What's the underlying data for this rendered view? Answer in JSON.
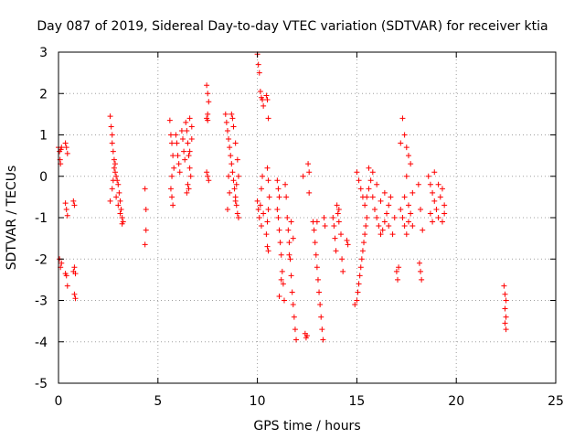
{
  "chart_data": {
    "type": "scatter",
    "title": "Day 087 of 2019, Sidereal Day-to-day VTEC variation (SDTVAR) for receiver ktia",
    "xlabel": "GPS time / hours",
    "ylabel": "SDTVAR / TECUs",
    "xlim": [
      0,
      25
    ],
    "ylim": [
      -5,
      3
    ],
    "xticks": [
      0,
      5,
      10,
      15,
      20,
      25
    ],
    "yticks": [
      -5,
      -4,
      -3,
      -2,
      -1,
      0,
      1,
      2,
      3
    ],
    "grid": true,
    "marker": "+",
    "colors": {
      "points": "#ff0000",
      "grid": "#a0a0a0",
      "axes": "#000000"
    },
    "series": [
      {
        "name": "SDTVAR",
        "points": [
          [
            0.0,
            0.7
          ],
          [
            0.05,
            0.6
          ],
          [
            0.08,
            0.4
          ],
          [
            0.1,
            0.3
          ],
          [
            0.12,
            0.65
          ],
          [
            0.15,
            0.7
          ],
          [
            0.05,
            -2.0
          ],
          [
            0.1,
            -2.2
          ],
          [
            0.15,
            -2.1
          ],
          [
            0.35,
            0.8
          ],
          [
            0.4,
            0.7
          ],
          [
            0.45,
            0.55
          ],
          [
            0.35,
            -0.65
          ],
          [
            0.4,
            -0.8
          ],
          [
            0.45,
            -0.95
          ],
          [
            0.35,
            -2.35
          ],
          [
            0.4,
            -2.4
          ],
          [
            0.45,
            -2.65
          ],
          [
            0.75,
            -0.6
          ],
          [
            0.8,
            -0.7
          ],
          [
            0.75,
            -2.3
          ],
          [
            0.8,
            -2.2
          ],
          [
            0.85,
            -2.35
          ],
          [
            0.8,
            -2.85
          ],
          [
            0.85,
            -2.95
          ],
          [
            2.6,
            1.45
          ],
          [
            2.65,
            1.2
          ],
          [
            2.7,
            1.0
          ],
          [
            2.7,
            0.8
          ],
          [
            2.75,
            0.6
          ],
          [
            2.8,
            0.4
          ],
          [
            2.8,
            0.2
          ],
          [
            2.85,
            0.1
          ],
          [
            2.9,
            0.0
          ],
          [
            2.95,
            -0.1
          ],
          [
            3.0,
            -0.2
          ],
          [
            3.05,
            -0.4
          ],
          [
            3.1,
            -0.6
          ],
          [
            3.15,
            -0.8
          ],
          [
            3.2,
            -1.0
          ],
          [
            3.25,
            -1.1
          ],
          [
            2.6,
            -0.6
          ],
          [
            2.7,
            -0.3
          ],
          [
            2.75,
            -0.1
          ],
          [
            2.85,
            0.3
          ],
          [
            2.9,
            -0.5
          ],
          [
            3.0,
            -0.7
          ],
          [
            3.1,
            -0.9
          ],
          [
            3.2,
            -1.15
          ],
          [
            4.35,
            -0.3
          ],
          [
            4.4,
            -0.8
          ],
          [
            4.4,
            -1.3
          ],
          [
            4.35,
            -1.65
          ],
          [
            5.6,
            1.35
          ],
          [
            5.65,
            1.0
          ],
          [
            5.7,
            0.8
          ],
          [
            5.75,
            0.5
          ],
          [
            5.8,
            0.2
          ],
          [
            5.7,
            0.0
          ],
          [
            5.65,
            -0.3
          ],
          [
            5.7,
            -0.5
          ],
          [
            5.75,
            -0.7
          ],
          [
            5.9,
            1.0
          ],
          [
            5.95,
            0.8
          ],
          [
            6.0,
            0.5
          ],
          [
            6.05,
            0.3
          ],
          [
            6.1,
            0.1
          ],
          [
            6.2,
            1.1
          ],
          [
            6.25,
            0.9
          ],
          [
            6.3,
            0.6
          ],
          [
            6.35,
            0.4
          ],
          [
            6.4,
            1.3
          ],
          [
            6.45,
            1.1
          ],
          [
            6.5,
            0.8
          ],
          [
            6.55,
            0.5
          ],
          [
            6.6,
            0.2
          ],
          [
            6.65,
            0.0
          ],
          [
            6.5,
            -0.2
          ],
          [
            6.45,
            -0.4
          ],
          [
            6.55,
            -0.3
          ],
          [
            6.6,
            1.4
          ],
          [
            6.7,
            1.2
          ],
          [
            6.7,
            0.9
          ],
          [
            6.6,
            0.6
          ],
          [
            7.45,
            2.2
          ],
          [
            7.5,
            2.0
          ],
          [
            7.55,
            1.8
          ],
          [
            7.5,
            1.5
          ],
          [
            7.45,
            1.4
          ],
          [
            7.5,
            1.35
          ],
          [
            7.45,
            0.1
          ],
          [
            7.5,
            0.0
          ],
          [
            7.55,
            -0.1
          ],
          [
            8.4,
            1.5
          ],
          [
            8.45,
            1.3
          ],
          [
            8.5,
            1.1
          ],
          [
            8.55,
            0.9
          ],
          [
            8.6,
            0.7
          ],
          [
            8.65,
            0.5
          ],
          [
            8.7,
            0.3
          ],
          [
            8.75,
            0.1
          ],
          [
            8.8,
            -0.1
          ],
          [
            8.85,
            -0.3
          ],
          [
            8.9,
            -0.5
          ],
          [
            8.95,
            -0.7
          ],
          [
            9.0,
            -0.9
          ],
          [
            8.5,
            -0.8
          ],
          [
            8.55,
            0.0
          ],
          [
            8.6,
            -0.4
          ],
          [
            8.7,
            1.5
          ],
          [
            8.8,
            1.2
          ],
          [
            8.9,
            0.8
          ],
          [
            9.0,
            0.4
          ],
          [
            9.05,
            0.0
          ],
          [
            8.95,
            -0.2
          ],
          [
            9.05,
            -1.0
          ],
          [
            8.9,
            -0.6
          ],
          [
            8.75,
            1.4
          ],
          [
            10.0,
            2.95
          ],
          [
            10.05,
            2.7
          ],
          [
            10.1,
            2.5
          ],
          [
            10.15,
            2.05
          ],
          [
            10.2,
            1.9
          ],
          [
            10.25,
            1.85
          ],
          [
            10.3,
            1.7
          ],
          [
            10.45,
            1.95
          ],
          [
            10.5,
            1.85
          ],
          [
            10.55,
            1.4
          ],
          [
            10.0,
            -0.6
          ],
          [
            10.05,
            -0.8
          ],
          [
            10.1,
            -1.0
          ],
          [
            10.15,
            -0.7
          ],
          [
            10.2,
            -0.3
          ],
          [
            10.25,
            0.0
          ],
          [
            10.3,
            -0.9
          ],
          [
            10.2,
            -1.2
          ],
          [
            10.5,
            0.2
          ],
          [
            10.55,
            -0.1
          ],
          [
            10.6,
            -0.5
          ],
          [
            10.55,
            -0.8
          ],
          [
            10.5,
            -1.1
          ],
          [
            10.45,
            -1.4
          ],
          [
            10.5,
            -1.7
          ],
          [
            10.55,
            -1.8
          ],
          [
            11.0,
            -0.1
          ],
          [
            11.05,
            -0.3
          ],
          [
            11.1,
            -0.5
          ],
          [
            11.0,
            -0.8
          ],
          [
            11.05,
            -1.0
          ],
          [
            11.1,
            -1.3
          ],
          [
            11.15,
            -1.6
          ],
          [
            11.2,
            -1.9
          ],
          [
            11.25,
            -2.3
          ],
          [
            11.3,
            -2.6
          ],
          [
            11.35,
            -3.0
          ],
          [
            11.1,
            -2.9
          ],
          [
            11.2,
            -2.5
          ],
          [
            11.4,
            -0.2
          ],
          [
            11.45,
            -0.5
          ],
          [
            11.5,
            -1.0
          ],
          [
            11.55,
            -1.3
          ],
          [
            11.6,
            -1.6
          ],
          [
            11.65,
            -2.0
          ],
          [
            11.7,
            -2.4
          ],
          [
            11.75,
            -2.8
          ],
          [
            11.8,
            -3.1
          ],
          [
            11.85,
            -3.4
          ],
          [
            11.9,
            -3.7
          ],
          [
            11.95,
            -3.95
          ],
          [
            11.6,
            -1.9
          ],
          [
            11.7,
            -1.1
          ],
          [
            11.8,
            -1.5
          ],
          [
            12.3,
            -0.0
          ],
          [
            12.4,
            -3.8
          ],
          [
            12.45,
            -3.9
          ],
          [
            12.5,
            -3.85
          ],
          [
            12.55,
            0.3
          ],
          [
            12.6,
            0.1
          ],
          [
            12.6,
            -0.4
          ],
          [
            12.8,
            -1.1
          ],
          [
            12.85,
            -1.3
          ],
          [
            12.9,
            -1.6
          ],
          [
            12.95,
            -1.9
          ],
          [
            13.0,
            -2.2
          ],
          [
            13.05,
            -2.5
          ],
          [
            13.1,
            -2.8
          ],
          [
            13.15,
            -3.1
          ],
          [
            13.2,
            -3.4
          ],
          [
            13.25,
            -3.7
          ],
          [
            13.3,
            -3.95
          ],
          [
            13.35,
            -1.0
          ],
          [
            13.4,
            -1.2
          ],
          [
            13.0,
            -1.1
          ],
          [
            13.8,
            -1.0
          ],
          [
            13.85,
            -1.2
          ],
          [
            13.9,
            -1.5
          ],
          [
            13.95,
            -1.8
          ],
          [
            14.0,
            -0.7
          ],
          [
            14.05,
            -0.9
          ],
          [
            14.1,
            -1.1
          ],
          [
            14.2,
            -1.4
          ],
          [
            14.25,
            -2.0
          ],
          [
            14.3,
            -2.3
          ],
          [
            14.1,
            -0.8
          ],
          [
            14.5,
            -1.55
          ],
          [
            14.55,
            -1.65
          ],
          [
            14.9,
            -3.1
          ],
          [
            15.0,
            -3.0
          ],
          [
            15.05,
            -2.8
          ],
          [
            15.1,
            -2.6
          ],
          [
            15.15,
            -2.4
          ],
          [
            15.2,
            -2.2
          ],
          [
            15.25,
            -2.0
          ],
          [
            15.3,
            -1.8
          ],
          [
            15.35,
            -1.6
          ],
          [
            15.4,
            -1.4
          ],
          [
            15.45,
            -1.2
          ],
          [
            15.5,
            -1.0
          ],
          [
            15.0,
            0.1
          ],
          [
            15.1,
            -0.1
          ],
          [
            15.2,
            -0.3
          ],
          [
            15.3,
            -0.5
          ],
          [
            15.4,
            -0.7
          ],
          [
            15.5,
            -0.5
          ],
          [
            15.6,
            -0.3
          ],
          [
            15.7,
            -0.1
          ],
          [
            15.8,
            -0.5
          ],
          [
            15.9,
            -0.8
          ],
          [
            16.0,
            -1.0
          ],
          [
            16.1,
            -1.2
          ],
          [
            16.2,
            -1.4
          ],
          [
            16.3,
            -1.3
          ],
          [
            16.4,
            -1.1
          ],
          [
            16.5,
            -0.9
          ],
          [
            16.6,
            -0.7
          ],
          [
            16.7,
            -0.5
          ],
          [
            15.6,
            0.2
          ],
          [
            15.8,
            0.1
          ],
          [
            16.0,
            -0.2
          ],
          [
            16.2,
            -0.6
          ],
          [
            16.4,
            -0.4
          ],
          [
            16.6,
            -1.2
          ],
          [
            16.8,
            -1.4
          ],
          [
            16.9,
            -1.0
          ],
          [
            17.0,
            -2.3
          ],
          [
            17.05,
            -2.5
          ],
          [
            17.1,
            -2.2
          ],
          [
            17.2,
            -0.8
          ],
          [
            17.3,
            -1.0
          ],
          [
            17.4,
            -1.2
          ],
          [
            17.5,
            -1.4
          ],
          [
            17.6,
            -1.1
          ],
          [
            17.3,
            1.4
          ],
          [
            17.4,
            1.0
          ],
          [
            17.5,
            0.7
          ],
          [
            17.6,
            0.5
          ],
          [
            17.7,
            0.3
          ],
          [
            17.5,
            0.0
          ],
          [
            17.4,
            -0.5
          ],
          [
            17.6,
            -0.7
          ],
          [
            17.8,
            -0.4
          ],
          [
            17.7,
            -0.9
          ],
          [
            17.2,
            0.8
          ],
          [
            17.8,
            -1.2
          ],
          [
            18.1,
            -0.2
          ],
          [
            18.2,
            -0.8
          ],
          [
            18.3,
            -1.3
          ],
          [
            18.15,
            -2.1
          ],
          [
            18.2,
            -2.3
          ],
          [
            18.25,
            -2.5
          ],
          [
            18.6,
            0.0
          ],
          [
            18.7,
            -0.2
          ],
          [
            18.8,
            -0.4
          ],
          [
            18.9,
            -0.6
          ],
          [
            19.0,
            -0.8
          ],
          [
            19.1,
            -1.0
          ],
          [
            19.2,
            -0.5
          ],
          [
            19.3,
            -0.3
          ],
          [
            19.4,
            -0.7
          ],
          [
            18.7,
            -0.9
          ],
          [
            18.8,
            -1.1
          ],
          [
            18.9,
            0.1
          ],
          [
            19.1,
            -0.2
          ],
          [
            19.3,
            -1.1
          ],
          [
            19.4,
            -0.9
          ],
          [
            22.4,
            -2.65
          ],
          [
            22.45,
            -2.85
          ],
          [
            22.5,
            -3.0
          ],
          [
            22.45,
            -3.2
          ],
          [
            22.5,
            -3.4
          ],
          [
            22.45,
            -3.55
          ],
          [
            22.5,
            -3.7
          ]
        ]
      }
    ]
  }
}
